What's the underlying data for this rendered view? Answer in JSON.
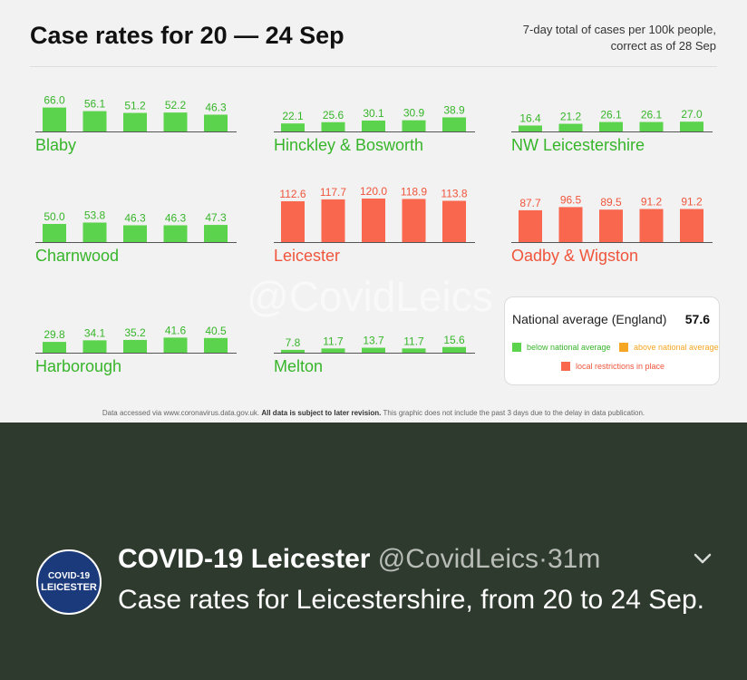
{
  "header": {
    "title": "Case rates for 20 — 24 Sep",
    "subtitle_line1": "7-day total of cases per 100k people,",
    "subtitle_line2": "correct as of 28 Sep"
  },
  "colors": {
    "below_national": "#5cd34c",
    "above_national": "#f5a623",
    "local_restrictions": "#f9674f",
    "green_label": "#37b52a",
    "red_label": "#f0553c"
  },
  "chart_data": [
    {
      "type": "bar",
      "title": "Blaby",
      "status": "below",
      "values": [
        66.0,
        56.1,
        51.2,
        52.2,
        46.3
      ]
    },
    {
      "type": "bar",
      "title": "Hinckley & Bosworth",
      "status": "below",
      "values": [
        22.1,
        25.6,
        30.1,
        30.9,
        38.9
      ]
    },
    {
      "type": "bar",
      "title": "NW Leicestershire",
      "status": "below",
      "values": [
        16.4,
        21.2,
        26.1,
        26.1,
        27.0
      ]
    },
    {
      "type": "bar",
      "title": "Charnwood",
      "status": "below",
      "values": [
        50.0,
        53.8,
        46.3,
        46.3,
        47.3
      ]
    },
    {
      "type": "bar",
      "title": "Leicester",
      "status": "restricted",
      "values": [
        112.6,
        117.7,
        120.0,
        118.9,
        113.8
      ]
    },
    {
      "type": "bar",
      "title": "Oadby & Wigston",
      "status": "restricted",
      "values": [
        87.7,
        96.5,
        89.5,
        91.2,
        91.2
      ]
    },
    {
      "type": "bar",
      "title": "Harborough",
      "status": "below",
      "values": [
        29.8,
        34.1,
        35.2,
        41.6,
        40.5
      ]
    },
    {
      "type": "bar",
      "title": "Melton",
      "status": "below",
      "values": [
        7.8,
        11.7,
        13.7,
        11.7,
        15.6
      ]
    }
  ],
  "legend": {
    "title": "National average (England)",
    "value": "57.6",
    "below": "below national average",
    "above": "above national average",
    "restricted": "local restrictions in place"
  },
  "watermark": "@CovidLeics",
  "footnote": {
    "prefix": "Data accessed via www.coronavirus.data.gov.uk. ",
    "bold": "All data is subject to later revision.",
    "suffix": " This graphic does not include the past 3 days due to the delay in data publication."
  },
  "tweet": {
    "avatar_line1": "COVID-19",
    "avatar_line2": "LEICESTER",
    "display_name": "COVID-19 Leicester",
    "handle": "@CovidLeics",
    "separator": "·",
    "time": "31m",
    "chevron_icon": "chevron-down-icon",
    "text": "Case rates for Leicestershire, from 20 to 24 Sep."
  }
}
